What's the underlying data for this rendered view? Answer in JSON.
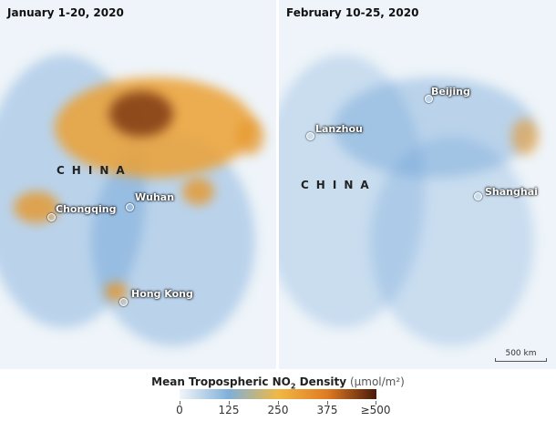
{
  "panels": [
    {
      "title": "January 1-20, 2020",
      "country_label": "CHINA",
      "cities": [
        "Wuhan",
        "Chongqing",
        "Hong Kong"
      ]
    },
    {
      "title": "February 10-25, 2020",
      "country_label": "CHINA",
      "cities": [
        "Beijing",
        "Lanzhou",
        "Shanghai"
      ],
      "scale_bar": "500 km"
    }
  ],
  "legend": {
    "title": "Mean Tropospheric NO",
    "subscript": "2",
    "title_suffix": " Density",
    "unit": "(µmol/m²)",
    "ticks": [
      "0",
      "125",
      "250",
      "375",
      "≥500"
    ],
    "colors": [
      "#f2f5f8",
      "#7fb0d9",
      "#f0b845",
      "#e07b22",
      "#4a1a0a"
    ]
  }
}
